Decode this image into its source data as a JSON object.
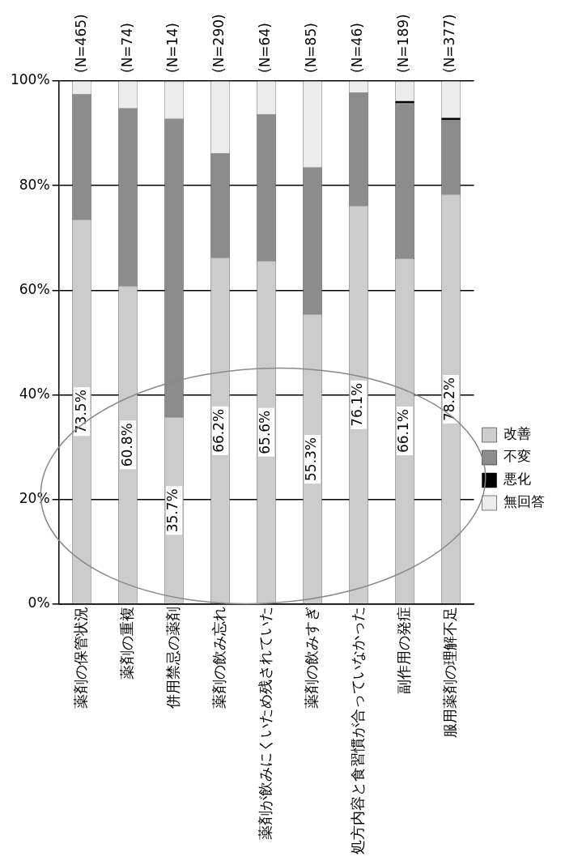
{
  "chart_data": {
    "type": "bar",
    "stacked": true,
    "categories": [
      "薬剤の保管状況",
      "薬剤の重複",
      "併用禁忌の薬剤",
      "薬剤の飲み忘れ",
      "薬剤が飲みにくいため残されていた",
      "薬剤の飲みすぎ",
      "処方内容と食習慣が合っていなかった",
      "副作用の発症",
      "服用薬剤の理解不足"
    ],
    "series": [
      {
        "name": "改善",
        "color": "#cccccc",
        "values": [
          73.5,
          60.8,
          35.7,
          66.2,
          65.6,
          55.3,
          76.1,
          66.1,
          78.2
        ],
        "value_labels": [
          "73.5%",
          "60.8%",
          "35.7%",
          "66.2%",
          "65.6%",
          "55.3%",
          "76.1%",
          "66.1%",
          "78.2%"
        ]
      },
      {
        "name": "不変",
        "color": "#8c8c8c",
        "values": [
          24.0,
          34.0,
          57.1,
          20.0,
          28.1,
          28.2,
          21.7,
          29.6,
          14.3
        ]
      },
      {
        "name": "悪化",
        "color": "#000000",
        "values": [
          0,
          0,
          0,
          0,
          0,
          0,
          0,
          0.5,
          0.5
        ]
      },
      {
        "name": "無回答",
        "color": "#ececec",
        "values": [
          2.5,
          5.2,
          7.1,
          13.8,
          6.3,
          16.5,
          2.2,
          3.7,
          7.0
        ]
      }
    ],
    "ylim": [
      0,
      100
    ],
    "yticks": [
      {
        "value": 0,
        "label": "0%"
      },
      {
        "value": 20,
        "label": "20%"
      },
      {
        "value": 40,
        "label": "40%"
      },
      {
        "value": 60,
        "label": "60%"
      },
      {
        "value": 80,
        "label": "80%"
      },
      {
        "value": 100,
        "label": "100%"
      }
    ],
    "grid": "y",
    "legend": "right",
    "annotations": [
      "(N=465)",
      "(N=74)",
      "(N=14)",
      "(N=290)",
      "(N=64)",
      "(N=85)",
      "(N=46)",
      "(N=189)",
      "(N=377)"
    ]
  }
}
